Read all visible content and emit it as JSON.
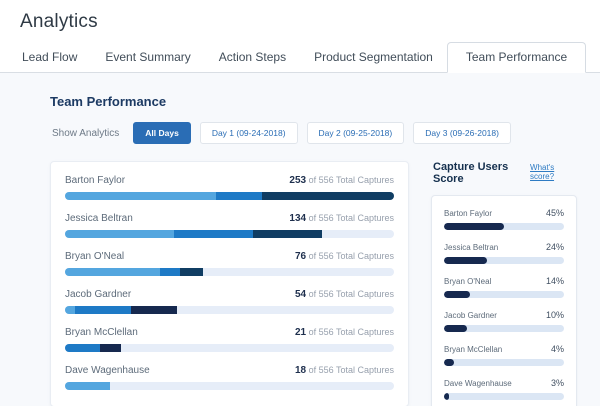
{
  "page": {
    "title": "Analytics"
  },
  "tabs": [
    {
      "label": "Lead Flow",
      "active": false
    },
    {
      "label": "Event Summary",
      "active": false
    },
    {
      "label": "Action Steps",
      "active": false
    },
    {
      "label": "Product Segmentation",
      "active": false
    },
    {
      "label": "Team Performance",
      "active": true
    }
  ],
  "section": {
    "heading": "Team Performance"
  },
  "filters": {
    "label": "Show Analytics",
    "buttons": [
      {
        "label": "All Days",
        "active": true
      },
      {
        "label": "Day 1 (09-24-2018)",
        "active": false
      },
      {
        "label": "Day 2 (09-25-2018)",
        "active": false
      },
      {
        "label": "Day 3 (09-26-2018)",
        "active": false
      }
    ]
  },
  "captures": {
    "total": 556,
    "total_label": "of 556 Total Captures",
    "palette": {
      "light": "#54a6df",
      "medium": "#1e7ac6",
      "dark": "#103d63",
      "navy": "#16294f"
    },
    "rows": [
      {
        "name": "Barton Faylor",
        "value": "253",
        "segments": [
          {
            "pct": 46,
            "color": "light"
          },
          {
            "pct": 14,
            "color": "medium"
          },
          {
            "pct": 40,
            "color": "dark"
          }
        ]
      },
      {
        "name": "Jessica Beltran",
        "value": "134",
        "segments": [
          {
            "pct": 33,
            "color": "light"
          },
          {
            "pct": 24,
            "color": "medium"
          },
          {
            "pct": 21,
            "color": "dark"
          }
        ]
      },
      {
        "name": "Bryan O'Neal",
        "value": "76",
        "segments": [
          {
            "pct": 29,
            "color": "light"
          },
          {
            "pct": 6,
            "color": "medium"
          },
          {
            "pct": 7,
            "color": "dark"
          }
        ]
      },
      {
        "name": "Jacob Gardner",
        "value": "54",
        "segments": [
          {
            "pct": 3,
            "color": "light"
          },
          {
            "pct": 17,
            "color": "medium"
          },
          {
            "pct": 14,
            "color": "navy"
          }
        ]
      },
      {
        "name": "Bryan McClellan",
        "value": "21",
        "segments": [
          {
            "pct": 10.5,
            "color": "medium"
          },
          {
            "pct": 6.5,
            "color": "navy"
          }
        ]
      },
      {
        "name": "Dave Wagenhause",
        "value": "18",
        "segments": [
          {
            "pct": 13.6,
            "color": "light"
          }
        ]
      }
    ]
  },
  "score_panel": {
    "heading": "Capture Users Score",
    "link": "What's score?",
    "bar_color": "#16294f",
    "rows": [
      {
        "name": "Barton Faylor",
        "score": "45%",
        "bar_pct": 50
      },
      {
        "name": "Jessica Beltran",
        "score": "24%",
        "bar_pct": 36
      },
      {
        "name": "Bryan O'Neal",
        "score": "14%",
        "bar_pct": 22
      },
      {
        "name": "Jacob Gardner",
        "score": "10%",
        "bar_pct": 19
      },
      {
        "name": "Bryan McClellan",
        "score": "4%",
        "bar_pct": 8
      },
      {
        "name": "Dave Wagenhause",
        "score": "3%",
        "bar_pct": 4
      }
    ]
  }
}
